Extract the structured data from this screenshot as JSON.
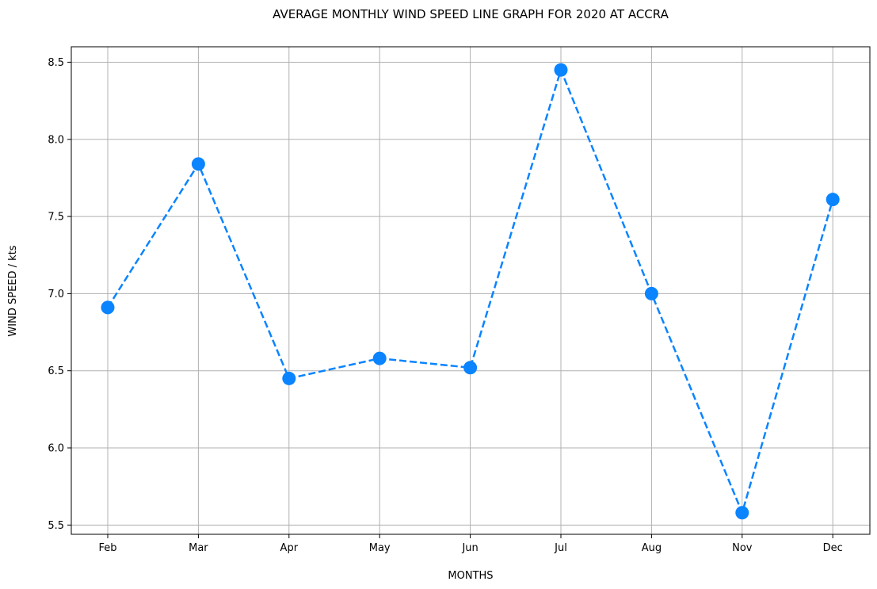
{
  "chart_data": {
    "type": "line",
    "title": "AVERAGE MONTHLY WIND SPEED LINE GRAPH FOR 2020 AT ACCRA",
    "xlabel": "MONTHS",
    "ylabel": "WIND SPEED / kts",
    "categories": [
      "Feb",
      "Mar",
      "Apr",
      "May",
      "Jun",
      "Jul",
      "Aug",
      "Nov",
      "Dec"
    ],
    "series": [
      {
        "values": [
          6.91,
          7.84,
          6.45,
          6.58,
          6.52,
          8.45,
          7.0,
          5.58,
          7.61
        ],
        "color": "#0a84ff",
        "line_style": "dashed",
        "marker": "circle"
      }
    ],
    "ylim": [
      5.44,
      8.6
    ],
    "yticks": [
      5.5,
      6.0,
      6.5,
      7.0,
      7.5,
      8.0,
      8.5
    ],
    "ytick_labels": [
      "5.5",
      "6.0",
      "6.5",
      "7.0",
      "7.5",
      "8.0",
      "8.5"
    ],
    "grid": true,
    "legend": "none"
  }
}
